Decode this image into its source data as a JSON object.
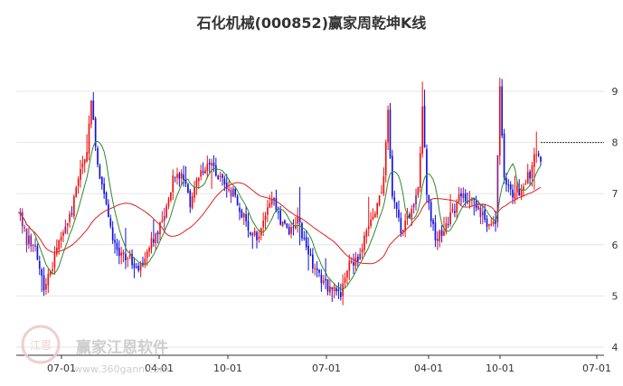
{
  "chart_data": {
    "type": "candlestick",
    "title": "石化机械(000852)赢家周乾坤K线",
    "y_ticks": [
      4,
      5,
      6,
      7,
      8,
      9
    ],
    "ylim": [
      4,
      9.9
    ],
    "x_ticks": [
      "07-01",
      "04-01",
      "10-01",
      "07-01",
      "04-01",
      "10-01",
      "07-01"
    ],
    "grid": true,
    "last_price_guide": 8.0,
    "colors": {
      "up": "#ee1111",
      "down": "#1111dd",
      "purple": "#8a1f8a",
      "ma_short": "#2e8b2e",
      "ma_long": "#dd2222",
      "grid": "#e6e6e6"
    },
    "price_path": [
      [
        0,
        6.7
      ],
      [
        4,
        6.1
      ],
      [
        8,
        6.0
      ],
      [
        12,
        5.1
      ],
      [
        16,
        5.6
      ],
      [
        20,
        6.2
      ],
      [
        24,
        6.5
      ],
      [
        28,
        7.2
      ],
      [
        32,
        7.9
      ],
      [
        34,
        8.8
      ],
      [
        37,
        7.6
      ],
      [
        40,
        6.9
      ],
      [
        44,
        6.1
      ],
      [
        48,
        5.8
      ],
      [
        52,
        5.7
      ],
      [
        56,
        5.4
      ],
      [
        60,
        5.9
      ],
      [
        64,
        6.2
      ],
      [
        68,
        6.6
      ],
      [
        72,
        7.3
      ],
      [
        76,
        7.4
      ],
      [
        80,
        6.8
      ],
      [
        84,
        7.3
      ],
      [
        88,
        7.6
      ],
      [
        92,
        7.4
      ],
      [
        96,
        7.2
      ],
      [
        100,
        7.0
      ],
      [
        104,
        6.6
      ],
      [
        108,
        6.3
      ],
      [
        112,
        6.1
      ],
      [
        116,
        6.7
      ],
      [
        118,
        7.0
      ],
      [
        122,
        6.5
      ],
      [
        126,
        6.3
      ],
      [
        130,
        6.5
      ],
      [
        134,
        5.9
      ],
      [
        138,
        5.5
      ],
      [
        142,
        5.3
      ],
      [
        146,
        5.1
      ],
      [
        150,
        5.0
      ],
      [
        154,
        5.6
      ],
      [
        158,
        5.7
      ],
      [
        162,
        6.2
      ],
      [
        166,
        6.6
      ],
      [
        170,
        7.3
      ],
      [
        172,
        8.6
      ],
      [
        174,
        6.9
      ],
      [
        178,
        6.3
      ],
      [
        182,
        6.6
      ],
      [
        186,
        7.1
      ],
      [
        188,
        8.7
      ],
      [
        190,
        7.0
      ],
      [
        194,
        6.1
      ],
      [
        198,
        6.3
      ],
      [
        202,
        6.6
      ],
      [
        206,
        7.0
      ],
      [
        210,
        6.9
      ],
      [
        214,
        6.7
      ],
      [
        218,
        6.4
      ],
      [
        222,
        6.4
      ],
      [
        224,
        9.0
      ],
      [
        226,
        7.3
      ],
      [
        230,
        7.0
      ],
      [
        234,
        7.1
      ],
      [
        238,
        7.4
      ],
      [
        240,
        7.8
      ],
      [
        243,
        7.7
      ]
    ],
    "watermark": {
      "brand": "赢家江恩软件",
      "url": "www.360gann.com",
      "seal": "江恩"
    }
  }
}
